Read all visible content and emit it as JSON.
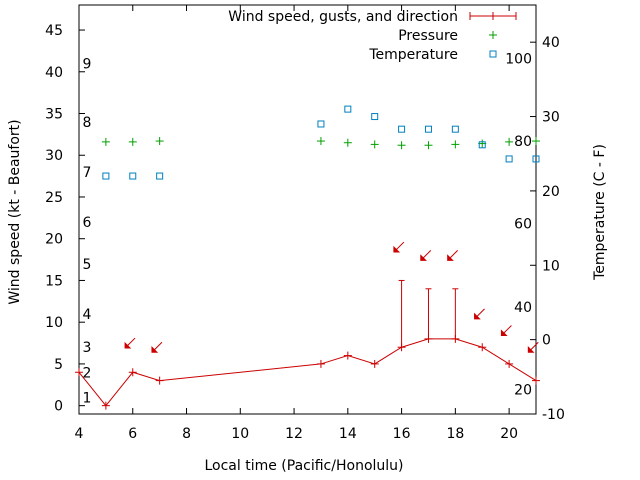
{
  "chart_data": {
    "type": "line",
    "xlabel": "Local time (Pacific/Honolulu)",
    "ylabel": "Wind speed (kt - Beaufort)",
    "y2label": "Temperature (C - F)",
    "xlim": [
      4,
      21
    ],
    "ylim": [
      -1,
      48
    ],
    "y2lim": [
      -10,
      45
    ],
    "x_ticks": [
      4,
      6,
      8,
      10,
      12,
      14,
      16,
      18,
      20
    ],
    "y_ticks": [
      0,
      5,
      10,
      15,
      20,
      25,
      30,
      35,
      40,
      45
    ],
    "y2_ticks": [
      -10,
      0,
      10,
      20,
      30,
      40
    ],
    "beaufort_labels": [
      {
        "label": "1",
        "wind": 1
      },
      {
        "label": "2",
        "wind": 4
      },
      {
        "label": "3",
        "wind": 7
      },
      {
        "label": "4",
        "wind": 11
      },
      {
        "label": "5",
        "wind": 17
      },
      {
        "label": "6",
        "wind": 22
      },
      {
        "label": "7",
        "wind": 28
      },
      {
        "label": "8",
        "wind": 34
      },
      {
        "label": "9",
        "wind": 41
      }
    ],
    "fahrenheit_labels": [
      {
        "label": "20",
        "temp_c": -6.7
      },
      {
        "label": "40",
        "temp_c": 4.4
      },
      {
        "label": "60",
        "temp_c": 15.6
      },
      {
        "label": "80",
        "temp_c": 26.7
      },
      {
        "label": "100",
        "temp_c": 37.8
      }
    ],
    "legend": [
      {
        "label": "Wind speed, gusts, and direction",
        "color": "#cc0000",
        "marker": "line-plus"
      },
      {
        "label": "Pressure",
        "color": "#00a000",
        "marker": "plus"
      },
      {
        "label": "Temperature",
        "color": "#0080c0",
        "marker": "square"
      }
    ],
    "series": [
      {
        "name": "Wind speed",
        "color": "#cc0000",
        "x": [
          4,
          5,
          6,
          7,
          13,
          14,
          15,
          16,
          17,
          18,
          19,
          20,
          21
        ],
        "values": [
          4,
          0,
          4,
          3,
          5,
          6,
          5,
          7,
          8,
          8,
          7,
          5,
          3
        ]
      },
      {
        "name": "Gusts",
        "color": "#cc0000",
        "x": [
          16,
          17,
          18
        ],
        "low": [
          7,
          8,
          8
        ],
        "high": [
          15,
          14,
          14
        ]
      },
      {
        "name": "Direction",
        "color": "#cc0000",
        "x": [
          5.9,
          6.9,
          15.9,
          16.9,
          17.9,
          18.9,
          19.9,
          20.9
        ],
        "wind": [
          7.5,
          7,
          19,
          18,
          18,
          11,
          9,
          7
        ]
      },
      {
        "name": "Pressure",
        "color": "#00a000",
        "x": [
          5,
          6,
          7,
          13,
          14,
          15,
          16,
          17,
          18,
          19,
          20,
          21
        ],
        "values": [
          31.6,
          31.6,
          31.7,
          31.7,
          31.5,
          31.3,
          31.2,
          31.2,
          31.3,
          31.4,
          31.6,
          31.7
        ]
      },
      {
        "name": "Temperature",
        "color": "#0080c0",
        "x": [
          5,
          6,
          7,
          13,
          14,
          15,
          16,
          17,
          18,
          19,
          20,
          21
        ],
        "values": [
          22,
          22,
          22,
          29,
          31,
          30,
          28.3,
          28.3,
          28.3,
          26.2,
          24.3,
          24.3
        ]
      }
    ]
  }
}
